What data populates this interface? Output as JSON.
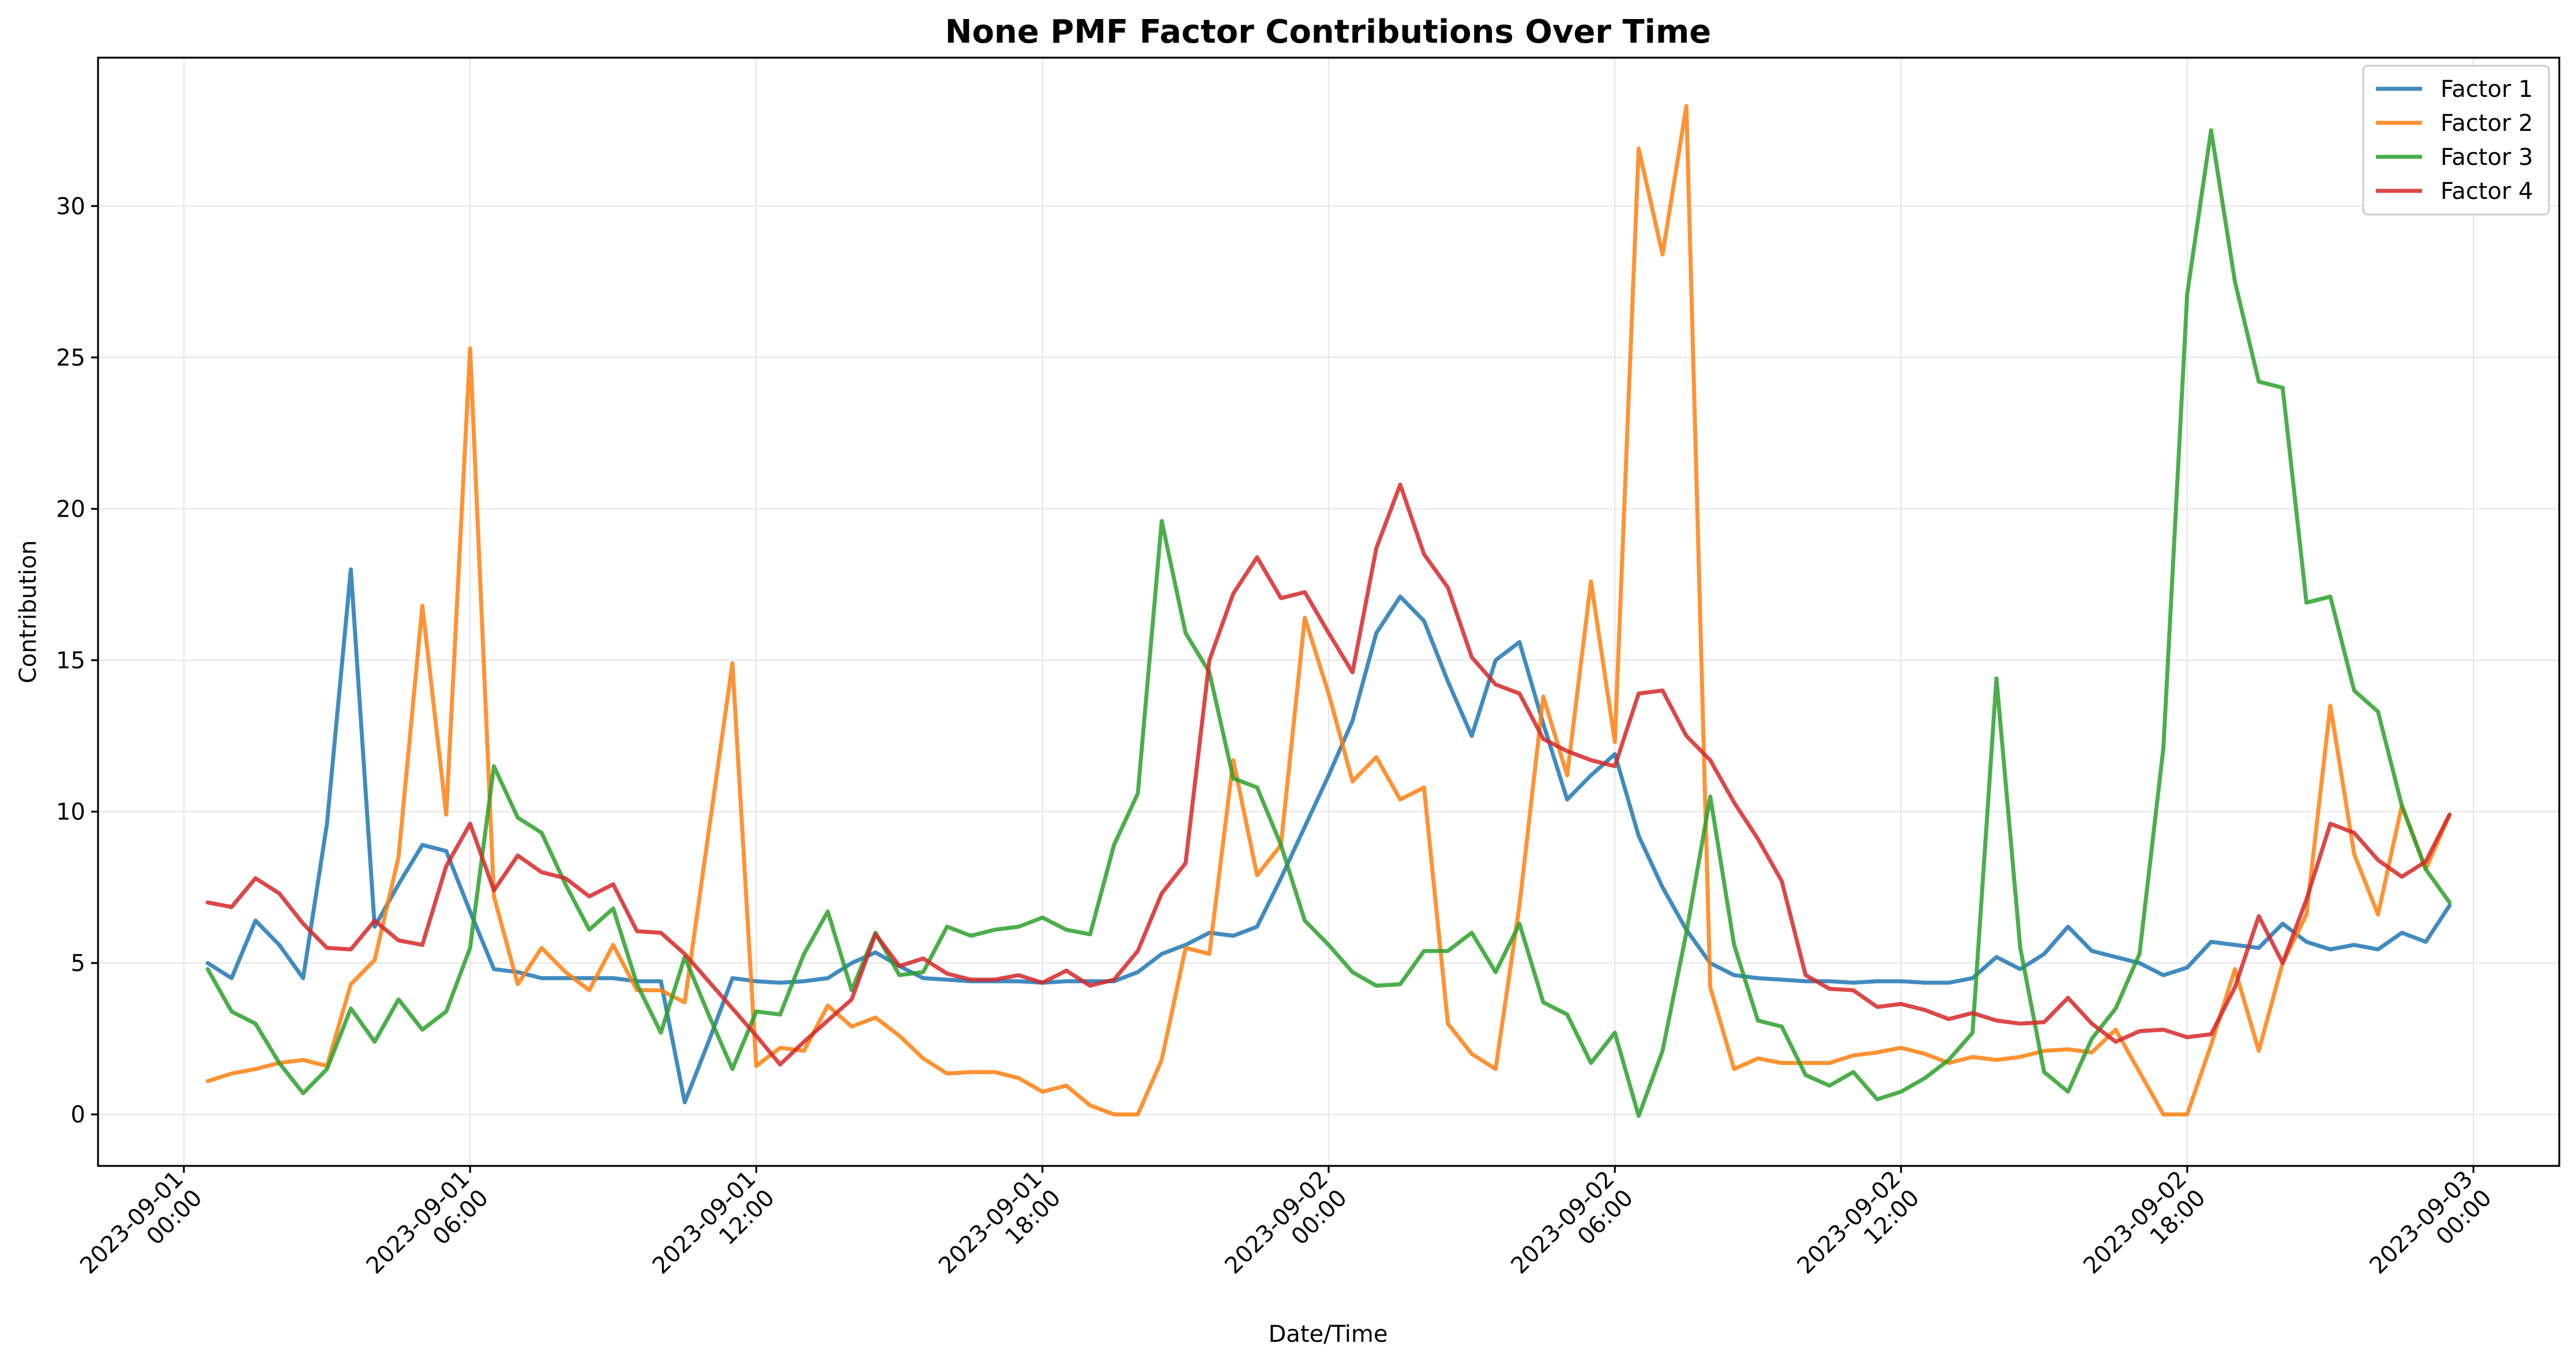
{
  "chart_data": {
    "type": "line",
    "title": "None PMF Factor Contributions Over Time",
    "xlabel": "Date/Time",
    "ylabel": "Contribution",
    "x_unit": "hours since 2023-09-01 00:00",
    "xlim_hours": [
      -1.8,
      49.8
    ],
    "ylim": [
      -1.7,
      34.9
    ],
    "grid": true,
    "legend_position": "top-right",
    "x_ticks": [
      {
        "value": 0,
        "label_lines": [
          "2023-09-01",
          "00:00"
        ]
      },
      {
        "value": 6,
        "label_lines": [
          "2023-09-01",
          "06:00"
        ]
      },
      {
        "value": 12,
        "label_lines": [
          "2023-09-01",
          "12:00"
        ]
      },
      {
        "value": 18,
        "label_lines": [
          "2023-09-01",
          "18:00"
        ]
      },
      {
        "value": 24,
        "label_lines": [
          "2023-09-02",
          "00:00"
        ]
      },
      {
        "value": 30,
        "label_lines": [
          "2023-09-02",
          "06:00"
        ]
      },
      {
        "value": 36,
        "label_lines": [
          "2023-09-02",
          "12:00"
        ]
      },
      {
        "value": 42,
        "label_lines": [
          "2023-09-02",
          "18:00"
        ]
      },
      {
        "value": 48,
        "label_lines": [
          "2023-09-03",
          "00:00"
        ]
      }
    ],
    "y_ticks": [
      0,
      5,
      10,
      15,
      20,
      25,
      30
    ],
    "x": [
      0.5,
      1,
      1.5,
      2,
      2.5,
      3,
      3.5,
      4,
      4.5,
      5,
      5.5,
      6,
      6.5,
      7,
      7.5,
      8,
      8.5,
      9,
      9.5,
      10,
      10.5,
      11,
      11.5,
      12,
      12.5,
      13,
      13.5,
      14,
      14.5,
      15,
      15.5,
      16,
      16.5,
      17,
      17.5,
      18,
      18.5,
      19,
      19.5,
      20,
      20.5,
      21,
      21.5,
      22,
      22.5,
      23,
      23.5,
      24,
      24.5,
      25,
      25.5,
      26,
      26.5,
      27,
      27.5,
      28,
      28.5,
      29,
      29.5,
      30,
      30.5,
      31,
      31.5,
      32,
      32.5,
      33,
      33.5,
      34,
      34.5,
      35,
      35.5,
      36,
      36.5,
      37,
      37.5,
      38,
      38.5,
      39,
      39.5,
      40,
      40.5,
      41,
      41.5,
      42,
      42.5,
      43,
      43.5,
      44,
      44.5,
      45,
      45.5,
      46,
      46.5,
      47,
      47.5
    ],
    "series": [
      {
        "name": "Factor 1",
        "color": "#1f77b4",
        "values": [
          5.0,
          4.5,
          6.4,
          5.6,
          4.5,
          9.6,
          18.0,
          6.2,
          7.6,
          8.9,
          8.7,
          6.7,
          4.8,
          4.7,
          4.5,
          4.5,
          4.5,
          4.5,
          4.4,
          4.4,
          0.4,
          2.4,
          4.5,
          4.4,
          4.35,
          4.4,
          4.5,
          5.0,
          5.35,
          4.9,
          4.5,
          4.45,
          4.4,
          4.4,
          4.4,
          4.35,
          4.4,
          4.4,
          4.4,
          4.7,
          5.3,
          5.6,
          6.0,
          5.9,
          6.2,
          7.8,
          9.5,
          11.2,
          13.0,
          15.9,
          17.1,
          16.3,
          14.3,
          12.5,
          15.0,
          15.6,
          12.9,
          10.4,
          11.2,
          11.9,
          9.2,
          7.5,
          6.1,
          5.0,
          4.6,
          4.5,
          4.45,
          4.4,
          4.4,
          4.35,
          4.4,
          4.4,
          4.35,
          4.35,
          4.5,
          5.2,
          4.8,
          5.3,
          6.2,
          5.4,
          5.2,
          5.0,
          4.6,
          4.85,
          5.7,
          5.6,
          5.5,
          6.3,
          5.7,
          5.45,
          5.6,
          5.45,
          6.0,
          5.7,
          6.9
        ]
      },
      {
        "name": "Factor 2",
        "color": "#ff7f0e",
        "values": [
          1.1,
          1.35,
          1.5,
          1.7,
          1.8,
          1.6,
          4.3,
          5.1,
          8.5,
          16.8,
          9.9,
          25.3,
          7.2,
          4.3,
          5.5,
          4.7,
          4.1,
          5.6,
          4.1,
          4.1,
          3.7,
          9.3,
          14.9,
          1.6,
          2.2,
          2.1,
          3.6,
          2.9,
          3.2,
          2.6,
          1.85,
          1.35,
          1.4,
          1.4,
          1.2,
          0.75,
          0.95,
          0.3,
          0.0,
          0.0,
          1.8,
          5.5,
          5.3,
          11.7,
          7.9,
          8.9,
          16.4,
          13.9,
          11.0,
          11.8,
          10.4,
          10.8,
          3.0,
          2.0,
          1.5,
          6.9,
          13.8,
          11.2,
          17.6,
          12.3,
          31.9,
          28.4,
          33.3,
          4.2,
          1.5,
          1.85,
          1.7,
          1.7,
          1.7,
          1.95,
          2.05,
          2.2,
          2.0,
          1.7,
          1.9,
          1.8,
          1.9,
          2.1,
          2.15,
          2.05,
          2.8,
          1.4,
          0.0,
          0.0,
          2.3,
          4.8,
          2.1,
          5.0,
          6.6,
          13.5,
          8.6,
          6.6,
          10.2,
          8.1,
          9.9
        ]
      },
      {
        "name": "Factor 3",
        "color": "#2ca02c",
        "values": [
          4.8,
          3.4,
          3.0,
          1.7,
          0.7,
          1.5,
          3.5,
          2.4,
          3.8,
          2.8,
          3.4,
          5.5,
          11.5,
          9.8,
          9.3,
          7.6,
          6.1,
          6.8,
          4.3,
          2.7,
          5.2,
          3.3,
          1.5,
          3.4,
          3.3,
          5.3,
          6.7,
          4.1,
          6.0,
          4.6,
          4.7,
          6.2,
          5.9,
          6.1,
          6.2,
          6.5,
          6.1,
          5.95,
          8.9,
          10.6,
          19.6,
          15.9,
          14.6,
          11.1,
          10.8,
          8.9,
          6.4,
          5.6,
          4.7,
          4.25,
          4.3,
          5.4,
          5.4,
          6.0,
          4.7,
          6.3,
          3.7,
          3.3,
          1.7,
          2.7,
          -0.05,
          2.1,
          6.0,
          10.5,
          5.6,
          3.1,
          2.9,
          1.3,
          0.95,
          1.4,
          0.5,
          0.75,
          1.2,
          1.8,
          2.7,
          14.4,
          5.5,
          1.4,
          0.75,
          2.5,
          3.5,
          5.3,
          12.1,
          27.1,
          32.5,
          27.5,
          24.2,
          24.0,
          16.9,
          17.1,
          14.0,
          13.3,
          10.2,
          8.1,
          7.0
        ]
      },
      {
        "name": "Factor 4",
        "color": "#d62728",
        "values": [
          7.0,
          6.85,
          7.8,
          7.3,
          6.3,
          5.5,
          5.45,
          6.4,
          5.75,
          5.6,
          8.2,
          9.6,
          7.4,
          8.55,
          8.0,
          7.8,
          7.2,
          7.6,
          6.05,
          6.0,
          5.3,
          4.4,
          3.5,
          2.6,
          1.65,
          2.4,
          3.1,
          3.8,
          5.95,
          4.9,
          5.15,
          4.65,
          4.45,
          4.45,
          4.6,
          4.35,
          4.75,
          4.25,
          4.45,
          5.4,
          7.3,
          8.3,
          15.0,
          17.2,
          18.4,
          17.05,
          17.25,
          15.9,
          14.6,
          18.7,
          20.8,
          18.5,
          17.4,
          15.1,
          14.2,
          13.9,
          12.4,
          12.0,
          11.7,
          11.5,
          13.9,
          14.0,
          12.5,
          11.7,
          10.3,
          9.1,
          7.7,
          4.6,
          4.15,
          4.1,
          3.55,
          3.65,
          3.45,
          3.15,
          3.35,
          3.1,
          3.0,
          3.05,
          3.85,
          3.0,
          2.4,
          2.75,
          2.8,
          2.55,
          2.65,
          4.2,
          6.55,
          5.0,
          7.1,
          9.6,
          9.3,
          8.4,
          7.85,
          8.35,
          9.9
        ]
      }
    ]
  }
}
